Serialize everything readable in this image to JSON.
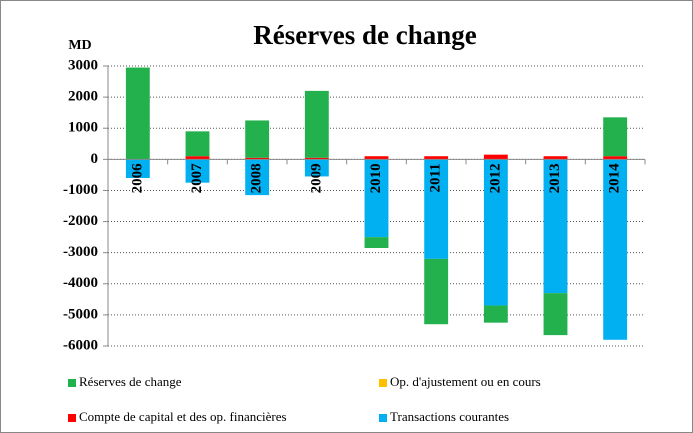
{
  "chart_data": {
    "type": "bar",
    "stacked": true,
    "title": "Réserves de change",
    "y_label": "MD",
    "categories": [
      "2006",
      "2007",
      "2008",
      "2009",
      "2010",
      "2011",
      "2012",
      "2013",
      "2014"
    ],
    "series": [
      {
        "name": "Compte de capital et des op. financières",
        "color": "#ff0000",
        "values": [
          0,
          100,
          50,
          50,
          100,
          100,
          150,
          100,
          100
        ]
      },
      {
        "name": "Transactions courantes",
        "color": "#00b0f0",
        "values": [
          -600,
          -750,
          -1150,
          -550,
          -2500,
          -3200,
          -4700,
          -4300,
          -5800
        ]
      },
      {
        "name": "Op. d'ajustement ou en cours",
        "color": "#ffc000",
        "values": [
          0,
          0,
          0,
          0,
          0,
          0,
          0,
          0,
          0
        ]
      },
      {
        "name": "Réserves de change",
        "color": "#22b14c",
        "values": [
          2950,
          800,
          1200,
          2150,
          -350,
          -2100,
          -550,
          -1350,
          1250
        ]
      }
    ],
    "ylim": [
      -6000,
      3000
    ],
    "yticks": [
      -6000,
      -5000,
      -4000,
      -3000,
      -2000,
      -1000,
      0,
      1000,
      2000,
      3000
    ],
    "grid": true
  }
}
